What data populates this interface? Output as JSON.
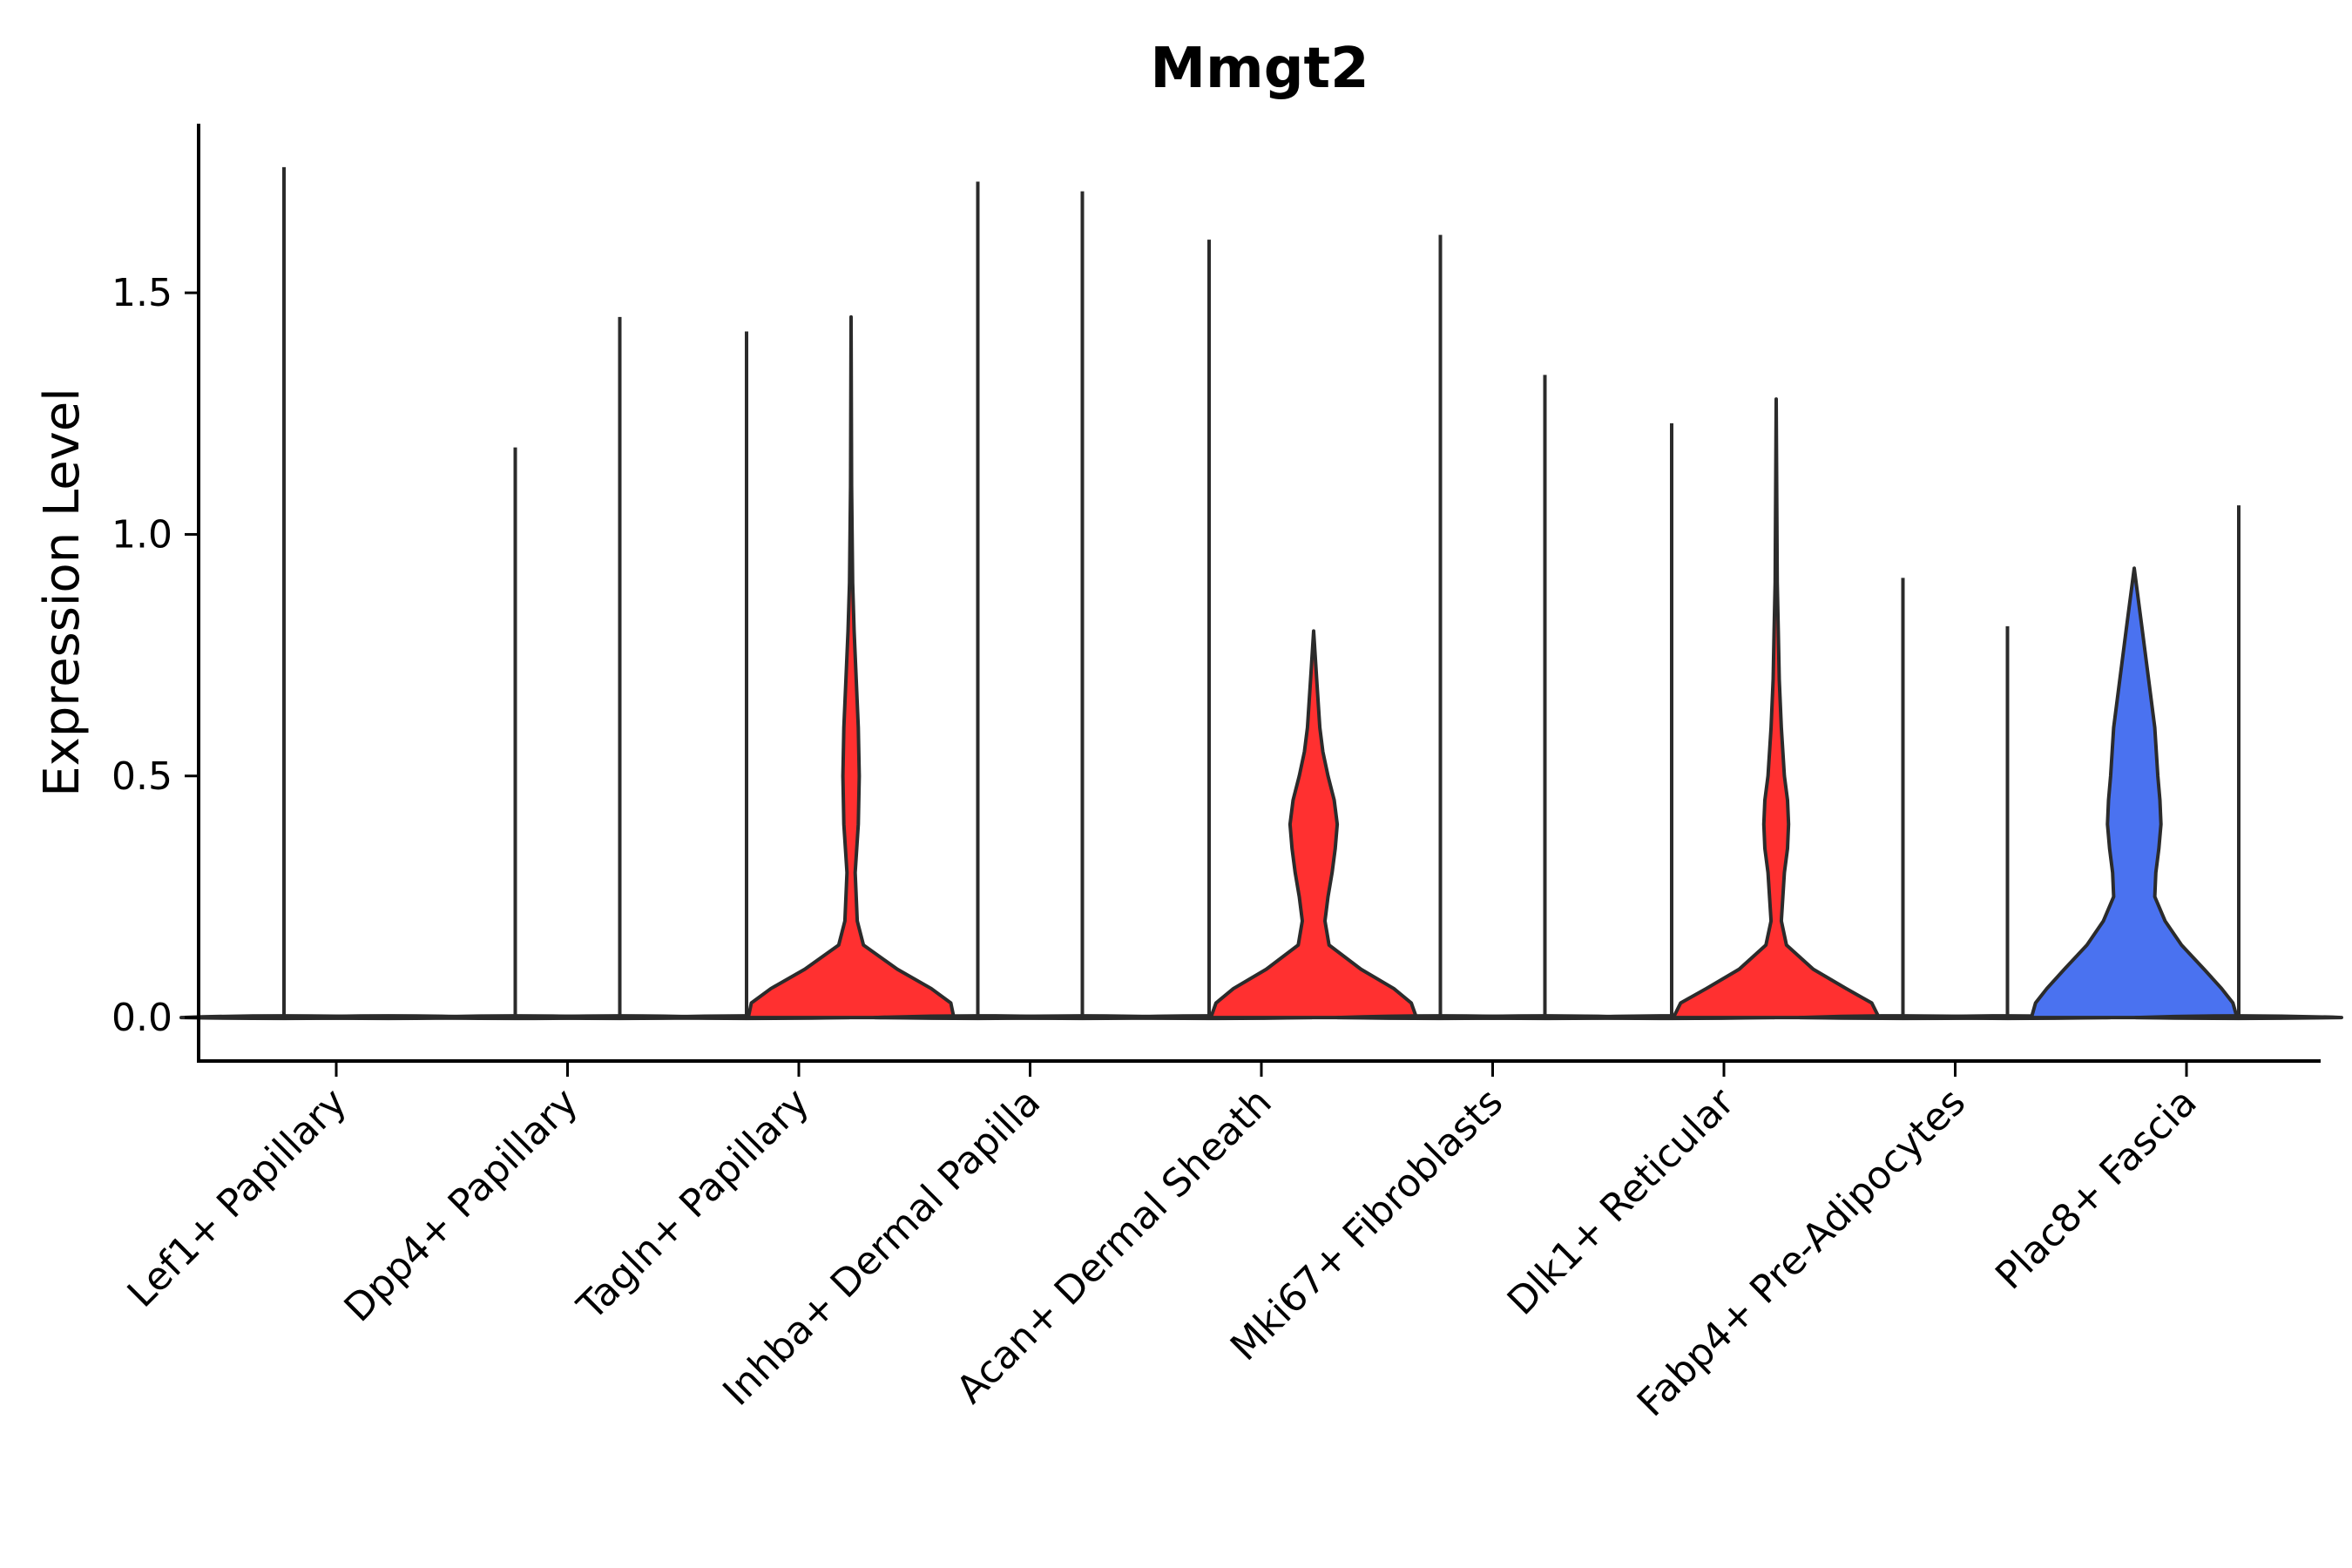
{
  "chart_data": {
    "type": "violin",
    "title": "Mmgt2",
    "xlabel": "",
    "ylabel": "Expression Level",
    "ylim": [
      -0.09,
      1.85
    ],
    "yticks": [
      0.0,
      0.5,
      1.0,
      1.5
    ],
    "ytick_labels": [
      "0.0",
      "0.5",
      "1.0",
      "1.5"
    ],
    "grid": false,
    "legend": "none",
    "categories": [
      "Lef1+ Papillary",
      "Dpp4+ Papillary",
      "Tagln+ Papillary",
      "Inhba+ Dermal Papilla",
      "Acan+ Dermal Sheath",
      "Mki67+ Fibroblasts",
      "Dlk1+ Reticular",
      "Fabp4+ Pre-Adipocytes",
      "Plac8+ Fascia"
    ],
    "series": [
      {
        "name": "Lef1+ Papillary left",
        "category_index": 0,
        "side": "left",
        "max": 1.76,
        "fill": "#ffffff",
        "shape": []
      },
      {
        "name": "Lef1+ Papillary right",
        "category_index": 0,
        "side": "right",
        "max": 0.0,
        "fill": "#ffffff",
        "shape": []
      },
      {
        "name": "Dpp4+ Papillary left",
        "category_index": 1,
        "side": "left",
        "max": 1.18,
        "fill": "#ffffff",
        "shape": []
      },
      {
        "name": "Dpp4+ Papillary right",
        "category_index": 1,
        "side": "right",
        "max": 1.45,
        "fill": "#ffffff",
        "shape": []
      },
      {
        "name": "Tagln+ Papillary left",
        "category_index": 2,
        "side": "left",
        "max": 1.42,
        "fill": "#ffffff",
        "shape": []
      },
      {
        "name": "Tagln+ Papillary right",
        "category_index": 2,
        "side": "right",
        "max": 1.45,
        "fill": "#ff3030",
        "shape": [
          [
            0.0,
            1.0
          ],
          [
            0.03,
            0.97
          ],
          [
            0.06,
            0.78
          ],
          [
            0.1,
            0.45
          ],
          [
            0.15,
            0.12
          ],
          [
            0.2,
            0.06
          ],
          [
            0.3,
            0.04
          ],
          [
            0.4,
            0.07
          ],
          [
            0.5,
            0.08
          ],
          [
            0.6,
            0.07
          ],
          [
            0.7,
            0.05
          ],
          [
            0.8,
            0.03
          ],
          [
            0.9,
            0.015
          ],
          [
            1.0,
            0.01
          ],
          [
            1.1,
            0.005
          ],
          [
            1.45,
            0.0
          ]
        ]
      },
      {
        "name": "Inhba+ Dermal Papilla left",
        "category_index": 3,
        "side": "left",
        "max": 1.73,
        "fill": "#ffffff",
        "shape": []
      },
      {
        "name": "Inhba+ Dermal Papilla right",
        "category_index": 3,
        "side": "right",
        "max": 1.71,
        "fill": "#ffffff",
        "shape": []
      },
      {
        "name": "Acan+ Dermal Sheath left",
        "category_index": 4,
        "side": "left",
        "max": 1.61,
        "fill": "#ffffff",
        "shape": []
      },
      {
        "name": "Acan+ Dermal Sheath right",
        "category_index": 4,
        "side": "right",
        "max": 0.8,
        "fill": "#ff3030",
        "shape": [
          [
            0.0,
            1.0
          ],
          [
            0.03,
            0.95
          ],
          [
            0.06,
            0.78
          ],
          [
            0.1,
            0.46
          ],
          [
            0.15,
            0.15
          ],
          [
            0.2,
            0.11
          ],
          [
            0.25,
            0.14
          ],
          [
            0.3,
            0.18
          ],
          [
            0.35,
            0.21
          ],
          [
            0.4,
            0.23
          ],
          [
            0.45,
            0.2
          ],
          [
            0.5,
            0.14
          ],
          [
            0.55,
            0.09
          ],
          [
            0.6,
            0.06
          ],
          [
            0.7,
            0.03
          ],
          [
            0.8,
            0.0
          ]
        ]
      },
      {
        "name": "Mki67+ Fibroblasts left",
        "category_index": 5,
        "side": "left",
        "max": 1.62,
        "fill": "#ffffff",
        "shape": []
      },
      {
        "name": "Mki67+ Fibroblasts right",
        "category_index": 5,
        "side": "right",
        "max": 1.33,
        "fill": "#ffffff",
        "shape": []
      },
      {
        "name": "Dlk1+ Reticular left",
        "category_index": 6,
        "side": "left",
        "max": 1.23,
        "fill": "#ffffff",
        "shape": []
      },
      {
        "name": "Dlk1+ Reticular right",
        "category_index": 6,
        "side": "right",
        "max": 1.28,
        "fill": "#ff3030",
        "shape": [
          [
            0.0,
            1.0
          ],
          [
            0.03,
            0.93
          ],
          [
            0.06,
            0.68
          ],
          [
            0.1,
            0.36
          ],
          [
            0.15,
            0.1
          ],
          [
            0.2,
            0.05
          ],
          [
            0.3,
            0.08
          ],
          [
            0.35,
            0.11
          ],
          [
            0.4,
            0.12
          ],
          [
            0.45,
            0.11
          ],
          [
            0.5,
            0.08
          ],
          [
            0.6,
            0.05
          ],
          [
            0.7,
            0.03
          ],
          [
            0.8,
            0.02
          ],
          [
            0.9,
            0.01
          ],
          [
            1.28,
            0.0
          ]
        ]
      },
      {
        "name": "Fabp4+ Pre-Adipocytes left",
        "category_index": 7,
        "side": "left",
        "max": 0.91,
        "fill": "#ffffff",
        "shape": []
      },
      {
        "name": "Fabp4+ Pre-Adipocytes right",
        "category_index": 7,
        "side": "right",
        "max": 0.81,
        "fill": "#ffffff",
        "shape": []
      },
      {
        "name": "Plac8+ Fascia left",
        "category_index": 8,
        "side": "left",
        "max": 0.93,
        "fill": "#4a72f0",
        "shape": [
          [
            0.0,
            1.0
          ],
          [
            0.03,
            0.96
          ],
          [
            0.06,
            0.85
          ],
          [
            0.1,
            0.68
          ],
          [
            0.15,
            0.46
          ],
          [
            0.2,
            0.3
          ],
          [
            0.25,
            0.2
          ],
          [
            0.3,
            0.21
          ],
          [
            0.35,
            0.24
          ],
          [
            0.4,
            0.26
          ],
          [
            0.45,
            0.25
          ],
          [
            0.5,
            0.23
          ],
          [
            0.6,
            0.2
          ],
          [
            0.7,
            0.14
          ],
          [
            0.8,
            0.08
          ],
          [
            0.93,
            0.0
          ]
        ]
      },
      {
        "name": "Plac8+ Fascia right",
        "category_index": 8,
        "side": "right",
        "max": 1.06,
        "fill": "#ffffff",
        "shape": []
      }
    ]
  }
}
